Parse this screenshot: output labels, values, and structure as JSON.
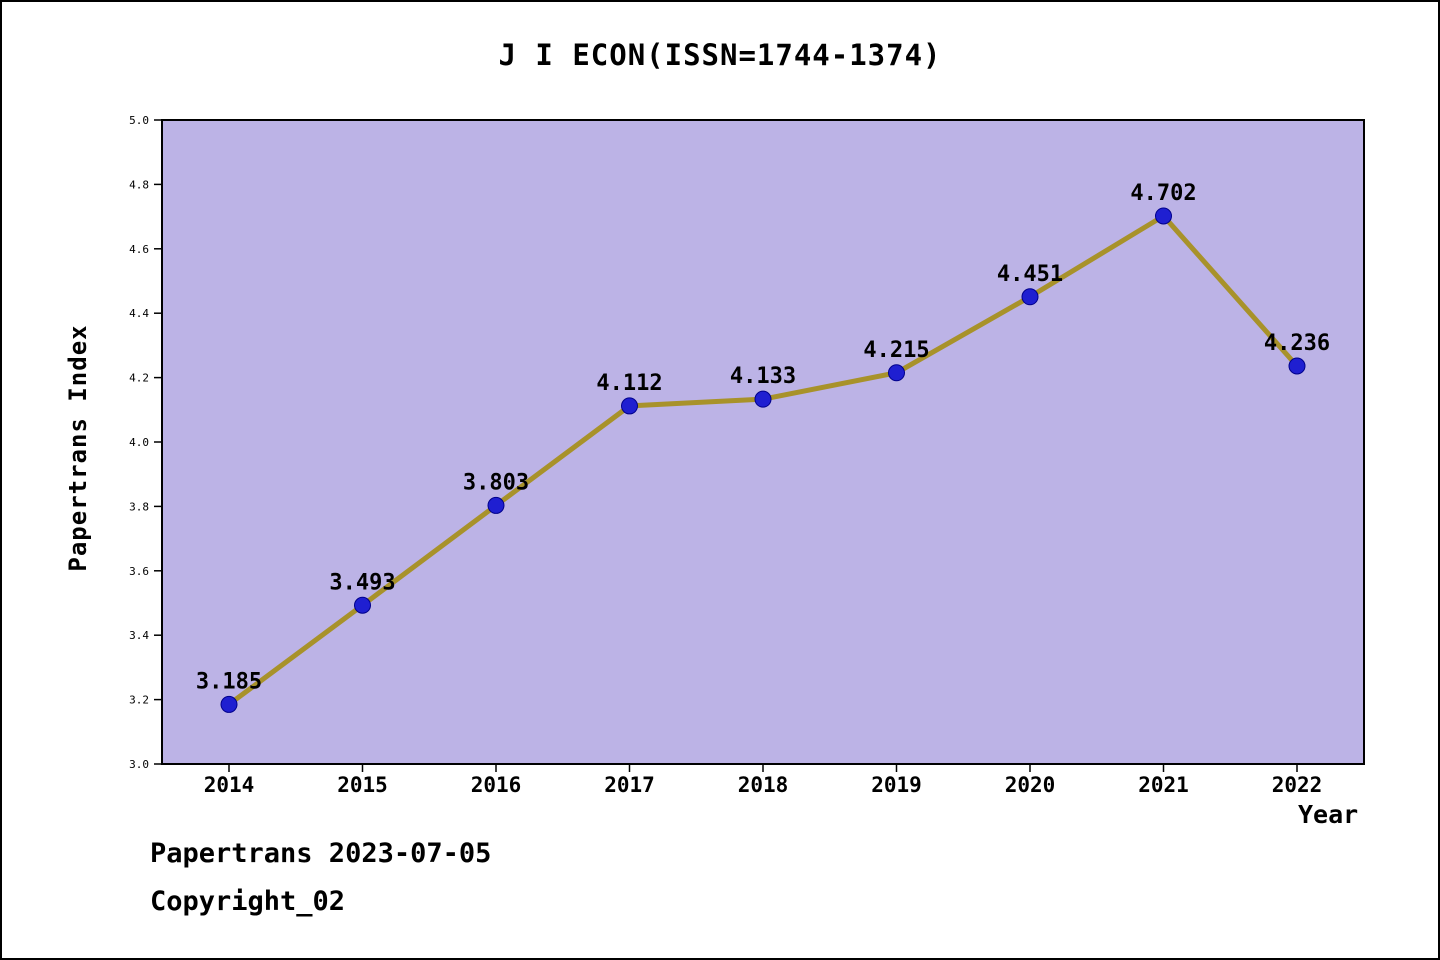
{
  "footer": {
    "line1": "Papertrans 2023-07-05",
    "line2": "Copyright_02"
  },
  "chart_data": {
    "type": "line",
    "title": "J I ECON(ISSN=1744-1374)",
    "xlabel": "Year",
    "ylabel": "Papertrans Index",
    "categories": [
      "2014",
      "2015",
      "2016",
      "2017",
      "2018",
      "2019",
      "2020",
      "2021",
      "2022"
    ],
    "series": [
      {
        "name": "Papertrans Index",
        "values": [
          3.185,
          3.493,
          3.803,
          4.112,
          4.133,
          4.215,
          4.451,
          4.702,
          4.236
        ]
      }
    ],
    "value_labels": [
      "3.185",
      "3.493",
      "3.803",
      "4.112",
      "4.133",
      "4.215",
      "4.451",
      "4.702",
      "4.236"
    ],
    "ylim": [
      3.0,
      5.0
    ],
    "y_ticks": [
      "3.0",
      "3.2",
      "3.4",
      "3.6",
      "3.8",
      "4.0",
      "4.2",
      "4.4",
      "4.6",
      "4.8",
      "5.0"
    ],
    "grid": false,
    "legend": "none",
    "colors": {
      "line": "#a8922a",
      "marker": "#1f1fd1",
      "marker_edge": "#00008b",
      "plot_background": "#bcb3e6",
      "axis": "#000000",
      "text": "#000000"
    }
  }
}
